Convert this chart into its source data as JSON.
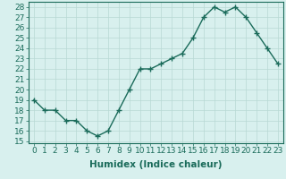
{
  "xlabel": "Humidex (Indice chaleur)",
  "x": [
    0,
    1,
    2,
    3,
    4,
    5,
    6,
    7,
    8,
    9,
    10,
    11,
    12,
    13,
    14,
    15,
    16,
    17,
    18,
    19,
    20,
    21,
    22,
    23
  ],
  "y": [
    19,
    18,
    18,
    17,
    17,
    16,
    15.5,
    16,
    18,
    20,
    22,
    22,
    22.5,
    23,
    23.5,
    25,
    27,
    28,
    27.5,
    28,
    27,
    25.5,
    24,
    22.5
  ],
  "line_color": "#1a6b5a",
  "marker": "+",
  "marker_size": 4,
  "bg_color": "#d8f0ee",
  "grid_color": "#b8d8d4",
  "ylim": [
    15,
    28
  ],
  "yticks": [
    15,
    16,
    17,
    18,
    19,
    20,
    21,
    22,
    23,
    24,
    25,
    26,
    27,
    28
  ],
  "tick_fontsize": 6.5,
  "xlabel_fontsize": 7.5,
  "line_width": 1.0
}
